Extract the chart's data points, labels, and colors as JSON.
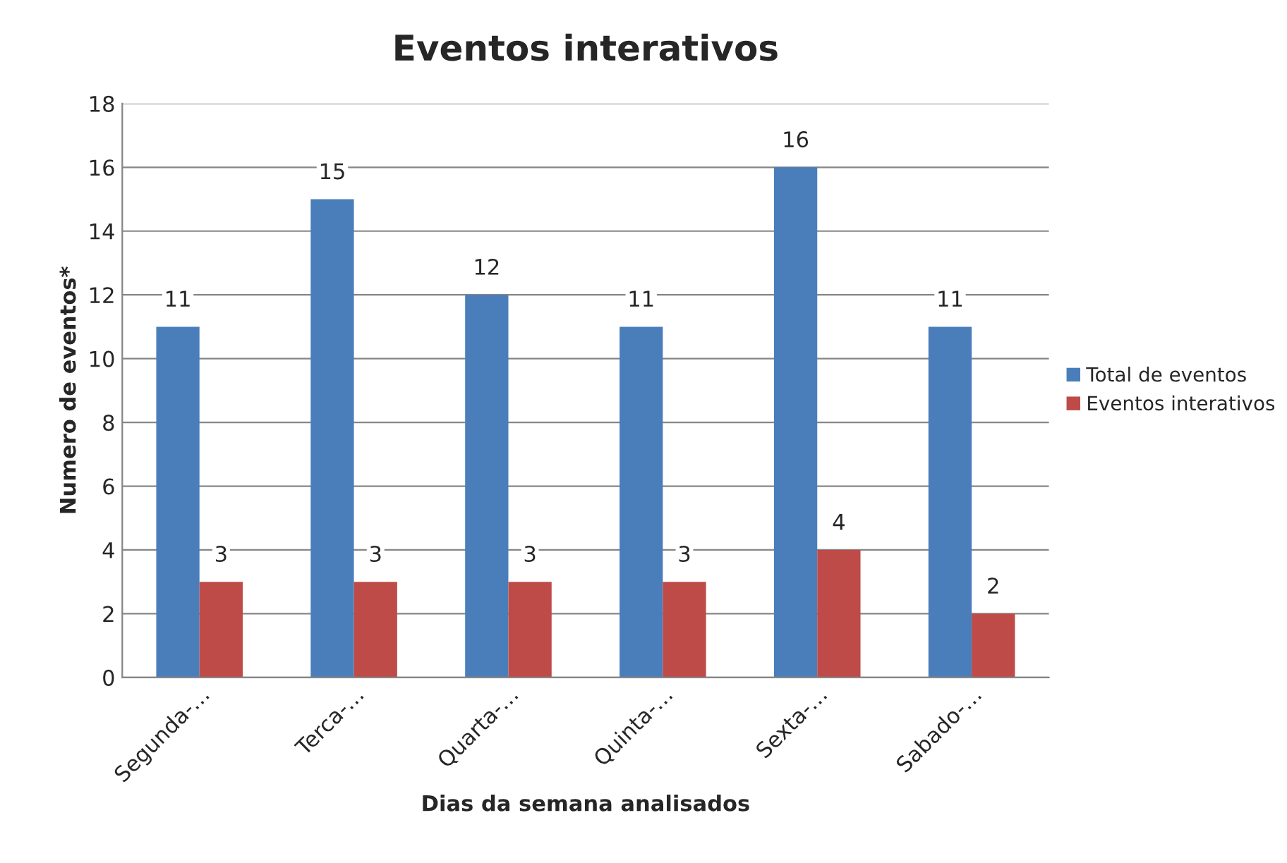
{
  "chart_data": {
    "type": "bar",
    "title": "Eventos interativos",
    "xlabel": "Dias da semana analisados",
    "ylabel": "Numero de eventos*",
    "categories": [
      "Segunda-…",
      "Terca-…",
      "Quarta-…",
      "Quinta-…",
      "Sexta-…",
      "Sabado-…"
    ],
    "series": [
      {
        "name": "Total de eventos",
        "color": "#4a7ebb",
        "values": [
          11,
          15,
          12,
          11,
          16,
          11
        ]
      },
      {
        "name": "Eventos interativos",
        "color": "#be4b48",
        "values": [
          3,
          3,
          3,
          3,
          4,
          2
        ]
      }
    ],
    "ylim": [
      0,
      18
    ],
    "yticks": [
      0,
      2,
      4,
      6,
      8,
      10,
      12,
      14,
      16,
      18
    ],
    "grid": "y",
    "legend": "right",
    "data_labels": true
  }
}
